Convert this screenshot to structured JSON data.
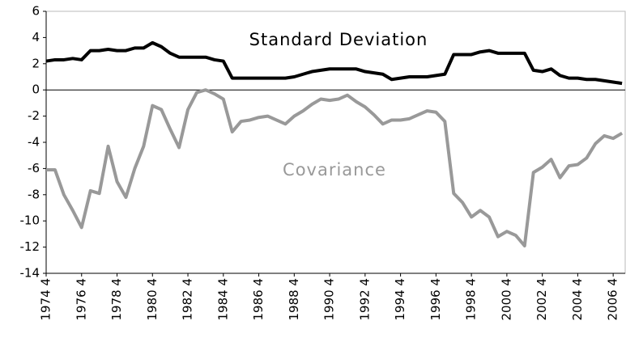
{
  "chart_data": {
    "type": "line",
    "categories": [
      "1974 4",
      null,
      null,
      null,
      "1976 4",
      null,
      null,
      null,
      "1978 4",
      null,
      null,
      null,
      "1980 4",
      null,
      null,
      null,
      "1982 4",
      null,
      null,
      null,
      "1984 4",
      null,
      null,
      null,
      "1986 4",
      null,
      null,
      null,
      "1988 4",
      null,
      null,
      null,
      "1990 4",
      null,
      null,
      null,
      "1992 4",
      null,
      null,
      null,
      "1994 4",
      null,
      null,
      null,
      "1996 4",
      null,
      null,
      null,
      "1998 4",
      null,
      null,
      null,
      "2000 4",
      null,
      null,
      null,
      "2002 4",
      null,
      null,
      null,
      "2004 4",
      null,
      null,
      null,
      "2006 4",
      null
    ],
    "series": [
      {
        "name": "Standard Deviation",
        "color": "#000000",
        "values": [
          2.2,
          2.3,
          2.3,
          2.4,
          2.3,
          3.0,
          3.0,
          3.1,
          3.0,
          3.0,
          3.2,
          3.2,
          3.6,
          3.3,
          2.8,
          2.5,
          2.5,
          2.5,
          2.5,
          2.3,
          2.2,
          0.9,
          0.9,
          0.9,
          0.9,
          0.9,
          0.9,
          0.9,
          1.0,
          1.2,
          1.4,
          1.5,
          1.6,
          1.6,
          1.6,
          1.6,
          1.4,
          1.3,
          1.2,
          0.8,
          0.9,
          1.0,
          1.0,
          1.0,
          1.1,
          1.2,
          2.7,
          2.7,
          2.7,
          2.9,
          3.0,
          2.8,
          2.8,
          2.8,
          2.8,
          1.5,
          1.4,
          1.6,
          1.1,
          0.9,
          0.9,
          0.8,
          0.8,
          0.7,
          0.6,
          0.5
        ]
      },
      {
        "name": "Covariance",
        "color": "#999999",
        "values": [
          -6.1,
          -6.1,
          -8.0,
          -9.2,
          -10.5,
          -7.7,
          -7.9,
          -4.3,
          -7.0,
          -8.2,
          -6.0,
          -4.3,
          -1.2,
          -1.5,
          -3.0,
          -4.4,
          -1.5,
          -0.2,
          0.0,
          -0.3,
          -0.7,
          -3.2,
          -2.4,
          -2.3,
          -2.1,
          -2.0,
          -2.3,
          -2.6,
          -2.0,
          -1.6,
          -1.1,
          -0.7,
          -0.8,
          -0.7,
          -0.4,
          -0.9,
          -1.3,
          -1.9,
          -2.6,
          -2.3,
          -2.3,
          -2.2,
          -1.9,
          -1.6,
          -1.7,
          -2.4,
          -7.9,
          -8.6,
          -9.7,
          -9.2,
          -9.7,
          -11.2,
          -10.8,
          -11.1,
          -11.9,
          -6.3,
          -5.9,
          -5.3,
          -6.7,
          -5.8,
          -5.7,
          -5.2,
          -4.1,
          -3.5,
          -3.7,
          -3.3
        ]
      }
    ],
    "ylim": [
      -14,
      6
    ],
    "yticks": [
      -14,
      -12,
      -10,
      -8,
      -6,
      -4,
      -2,
      0,
      2,
      4,
      6
    ],
    "grid": false
  }
}
